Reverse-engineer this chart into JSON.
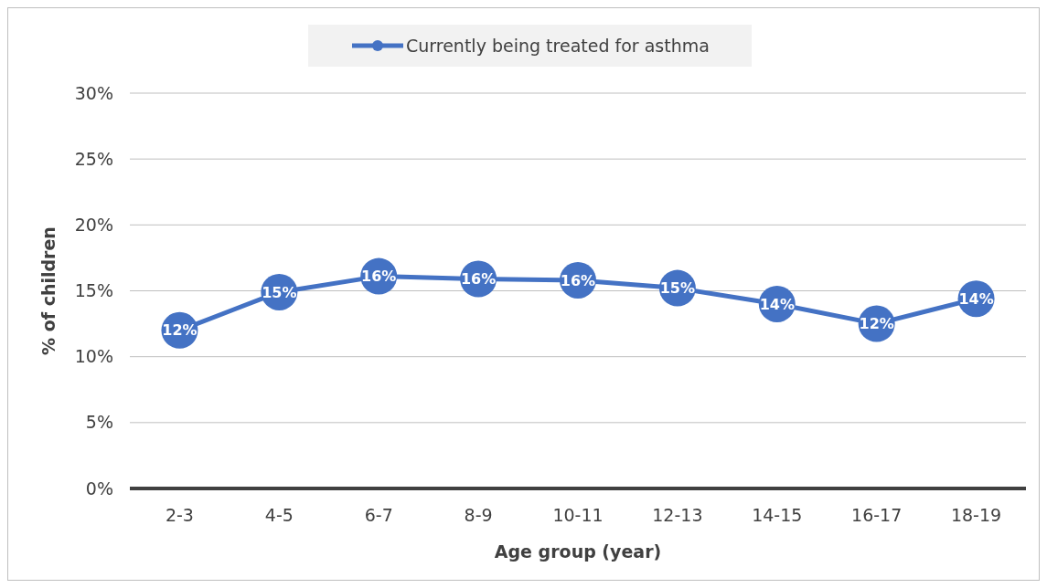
{
  "chart_data": {
    "type": "line",
    "xlabel": "Age group (year)",
    "ylabel": "% of children",
    "categories": [
      "2-3",
      "4-5",
      "6-7",
      "8-9",
      "10-11",
      "12-13",
      "14-15",
      "16-17",
      "18-19"
    ],
    "series": [
      {
        "name": "Currently being treated for asthma",
        "color": "#4472c4",
        "values": [
          12.0,
          14.9,
          16.1,
          15.9,
          15.8,
          15.2,
          14.0,
          12.5,
          14.4
        ],
        "value_labels": [
          "12%",
          "15%",
          "16%",
          "16%",
          "16%",
          "15%",
          "14%",
          "12%",
          "14%"
        ]
      }
    ],
    "ylim": [
      0,
      30
    ],
    "yticks": [
      {
        "value": 0,
        "label": "0%"
      },
      {
        "value": 5,
        "label": "5%"
      },
      {
        "value": 10,
        "label": "10%"
      },
      {
        "value": 15,
        "label": "15%"
      },
      {
        "value": 20,
        "label": "20%"
      },
      {
        "value": 25,
        "label": "25%"
      },
      {
        "value": 30,
        "label": "30%"
      }
    ],
    "grid": "y",
    "legend": "top",
    "marker": "circle",
    "line_style": "solid"
  }
}
